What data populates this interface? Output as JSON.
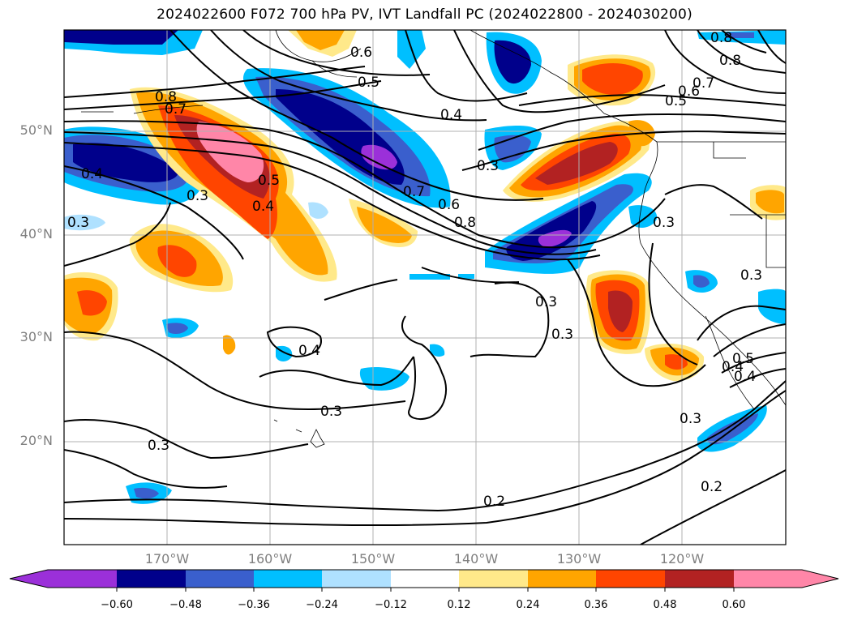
{
  "title": "2024022600 F072 700 hPa PV, IVT Landfall PC (2024022800 - 2024030200)",
  "map": {
    "lat_labels": [
      "50°N",
      "40°N",
      "30°N",
      "20°N"
    ],
    "lon_labels": [
      "170°W",
      "160°W",
      "150°W",
      "140°W",
      "130°W",
      "120°W"
    ],
    "contour_labels": [
      "0.8",
      "0.7",
      "0.6",
      "0.5",
      "0.4",
      "0.3",
      "0.5",
      "0.4",
      "0.4",
      "0.3",
      "0.7",
      "0.6",
      "0.8",
      "0.3",
      "0.4",
      "0.3",
      "0.3",
      "0.3",
      "0.4",
      "0.3",
      "0.3",
      "0.2",
      "0.2",
      "0.8",
      "0.8",
      "0.7",
      "0.6",
      "0.5",
      "0.3",
      "0.5",
      "0.4",
      "0.3"
    ]
  },
  "colorbar": {
    "ticks": [
      "−0.60",
      "−0.48",
      "−0.36",
      "−0.24",
      "−0.12",
      "0.12",
      "0.24",
      "0.36",
      "0.48",
      "0.60"
    ],
    "colors": [
      "#9b30d9",
      "#00008b",
      "#3a5fcd",
      "#00bfff",
      "#afe1ff",
      "#ffffff",
      "#ffe98a",
      "#ffa500",
      "#ff4500",
      "#b22222",
      "#ff86a8"
    ]
  }
}
